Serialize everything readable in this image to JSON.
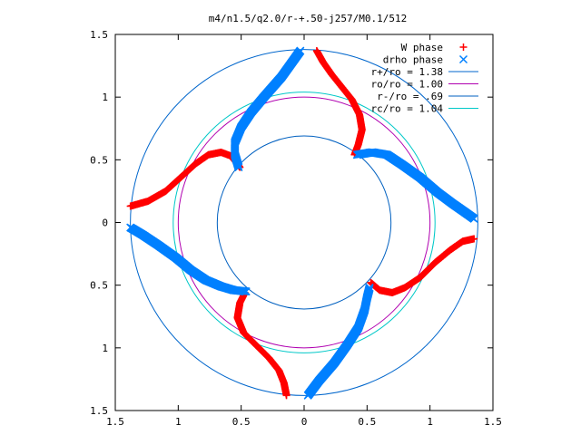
{
  "chart_data": {
    "type": "scatter",
    "title": "m4/n1.5/q2.0/r-+.50-j257/M0.1/512",
    "xlabel": "",
    "ylabel": "",
    "xlim": [
      -1.5,
      1.5
    ],
    "ylim": [
      -1.5,
      1.5
    ],
    "x_ticks": [
      {
        "v": -1.5,
        "label": "1.5"
      },
      {
        "v": -1,
        "label": "1"
      },
      {
        "v": -0.5,
        "label": "0.5"
      },
      {
        "v": 0,
        "label": "0"
      },
      {
        "v": 0.5,
        "label": "0.5"
      },
      {
        "v": 1,
        "label": "1"
      },
      {
        "v": 1.5,
        "label": "1.5"
      }
    ],
    "y_ticks": [
      {
        "v": 1.5,
        "label": "1.5"
      },
      {
        "v": 1,
        "label": "1"
      },
      {
        "v": 0.5,
        "label": "0.5"
      },
      {
        "v": 0,
        "label": "0"
      },
      {
        "v": -0.5,
        "label": "0.5"
      },
      {
        "v": -1,
        "label": "1"
      },
      {
        "v": -1.5,
        "label": "1.5"
      }
    ],
    "grid": false,
    "legend_position": "top-right",
    "series": [
      {
        "name": "W phase",
        "marker": "plus",
        "color": "#ff0000",
        "arms": [
          [
            [
              0.1,
              1.37
            ],
            [
              0.15,
              1.28
            ],
            [
              0.22,
              1.18
            ],
            [
              0.3,
              1.08
            ],
            [
              0.38,
              0.98
            ],
            [
              0.44,
              0.86
            ],
            [
              0.46,
              0.74
            ],
            [
              0.43,
              0.62
            ],
            [
              0.4,
              0.54
            ]
          ],
          [
            [
              -0.51,
              0.44
            ],
            [
              -0.58,
              0.53
            ],
            [
              -0.66,
              0.56
            ],
            [
              -0.76,
              0.54
            ],
            [
              -0.86,
              0.47
            ],
            [
              -0.98,
              0.36
            ],
            [
              -1.1,
              0.25
            ],
            [
              -1.24,
              0.17
            ],
            [
              -1.38,
              0.13
            ]
          ],
          [
            [
              -0.14,
              -1.38
            ],
            [
              -0.16,
              -1.28
            ],
            [
              -0.2,
              -1.18
            ],
            [
              -0.28,
              -1.08
            ],
            [
              -0.38,
              -0.98
            ],
            [
              -0.48,
              -0.88
            ],
            [
              -0.53,
              -0.76
            ],
            [
              -0.51,
              -0.64
            ],
            [
              -0.47,
              -0.56
            ]
          ],
          [
            [
              0.53,
              -0.48
            ],
            [
              0.6,
              -0.54
            ],
            [
              0.7,
              -0.56
            ],
            [
              0.8,
              -0.52
            ],
            [
              0.92,
              -0.44
            ],
            [
              1.04,
              -0.32
            ],
            [
              1.16,
              -0.22
            ],
            [
              1.26,
              -0.15
            ],
            [
              1.35,
              -0.13
            ]
          ]
        ]
      },
      {
        "name": "drho phase",
        "marker": "cross",
        "color": "#0080ff",
        "arms": [
          [
            [
              -0.52,
              0.44
            ],
            [
              -0.55,
              0.54
            ],
            [
              -0.55,
              0.64
            ],
            [
              -0.5,
              0.76
            ],
            [
              -0.42,
              0.88
            ],
            [
              -0.32,
              1.0
            ],
            [
              -0.18,
              1.16
            ],
            [
              -0.08,
              1.3
            ],
            [
              -0.03,
              1.37
            ]
          ],
          [
            [
              0.42,
              0.54
            ],
            [
              0.54,
              0.56
            ],
            [
              0.66,
              0.54
            ],
            [
              0.78,
              0.46
            ],
            [
              0.92,
              0.36
            ],
            [
              1.06,
              0.24
            ],
            [
              1.18,
              0.15
            ],
            [
              1.28,
              0.08
            ],
            [
              1.35,
              0.03
            ]
          ],
          [
            [
              -1.38,
              -0.04
            ],
            [
              -1.28,
              -0.1
            ],
            [
              -1.16,
              -0.18
            ],
            [
              -1.02,
              -0.28
            ],
            [
              -0.9,
              -0.38
            ],
            [
              -0.78,
              -0.46
            ],
            [
              -0.66,
              -0.51
            ],
            [
              -0.56,
              -0.54
            ],
            [
              -0.46,
              -0.55
            ]
          ],
          [
            [
              0.03,
              -1.38
            ],
            [
              0.12,
              -1.26
            ],
            [
              0.24,
              -1.12
            ],
            [
              0.34,
              -0.98
            ],
            [
              0.43,
              -0.84
            ],
            [
              0.48,
              -0.7
            ],
            [
              0.5,
              -0.6
            ],
            [
              0.52,
              -0.52
            ]
          ]
        ]
      }
    ],
    "circles": [
      {
        "name": "r+/ro = 1.38",
        "r": 1.38,
        "color": "#0066cc"
      },
      {
        "name": "ro/ro = 1.00",
        "r": 1.0,
        "color": "#b000b0"
      },
      {
        "name": "r-/ro = .69",
        "r": 0.69,
        "color": "#0060c0"
      },
      {
        "name": "rc/ro = 1.04",
        "r": 1.04,
        "color": "#00c8c8"
      }
    ]
  }
}
